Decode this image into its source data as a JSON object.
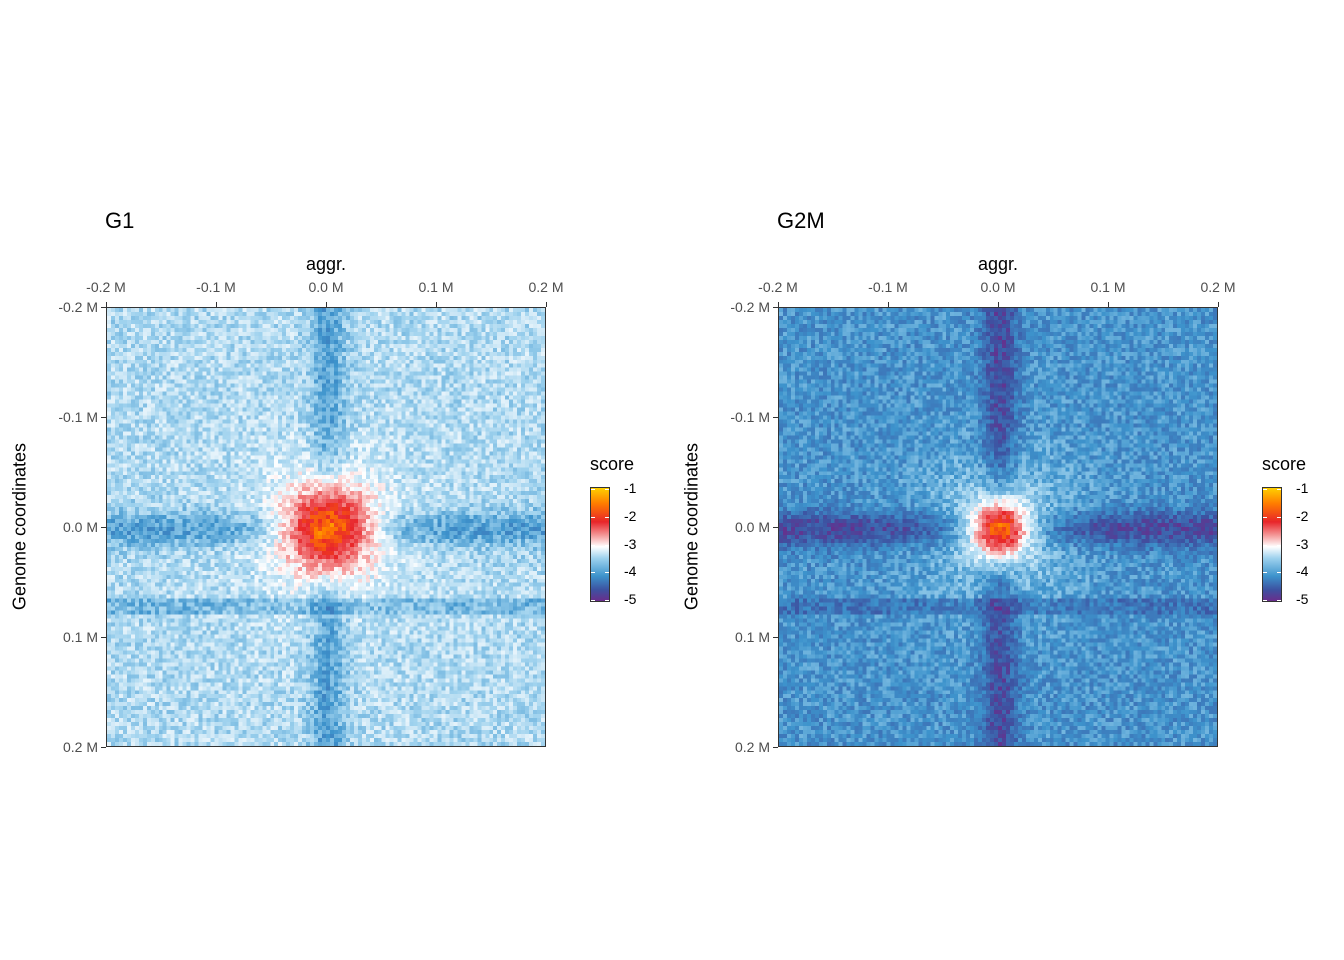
{
  "chart_data": [
    {
      "type": "heatmap",
      "title": "G1",
      "xlabel": "aggr.",
      "ylabel": "Genome coordinates",
      "x_ticks": [
        "-0.2 M",
        "-0.1 M",
        "0.0 M",
        "0.1 M",
        "0.2 M"
      ],
      "y_ticks": [
        "-0.2 M",
        "-0.1 M",
        "0.0 M",
        "0.1 M",
        "0.2 M"
      ],
      "xlim": [
        -0.2,
        0.2
      ],
      "ylim": [
        -0.2,
        0.2
      ],
      "legend": {
        "title": "score",
        "ticks": [
          "-1",
          "-2",
          "-3",
          "-4",
          "-5"
        ],
        "range": [
          -5,
          -1
        ]
      },
      "background_score": -3.4,
      "center_score": -1.9,
      "cross_score": -3.9
    },
    {
      "type": "heatmap",
      "title": "G2M",
      "xlabel": "aggr.",
      "ylabel": "Genome coordinates",
      "x_ticks": [
        "-0.2 M",
        "-0.1 M",
        "0.0 M",
        "0.1 M",
        "0.2 M"
      ],
      "y_ticks": [
        "-0.2 M",
        "-0.1 M",
        "0.0 M",
        "0.1 M",
        "0.2 M"
      ],
      "xlim": [
        -0.2,
        0.2
      ],
      "ylim": [
        -0.2,
        0.2
      ],
      "legend": {
        "title": "score",
        "ticks": [
          "-1",
          "-2",
          "-3",
          "-4",
          "-5"
        ],
        "range": [
          -5,
          -1
        ]
      },
      "background_score": -4.0,
      "center_score": -2.1,
      "cross_score": -4.7
    }
  ]
}
